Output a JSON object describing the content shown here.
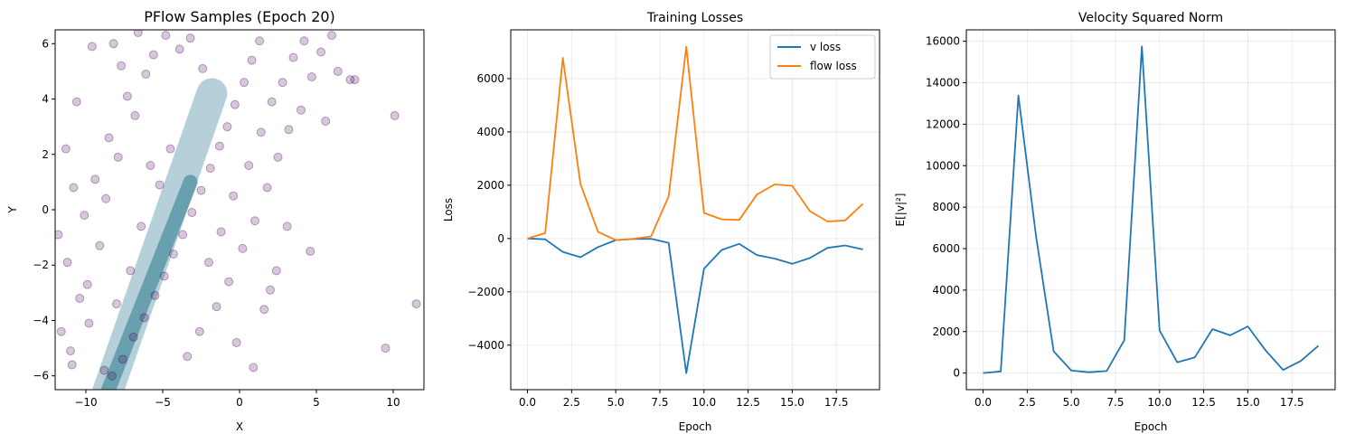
{
  "chart_data": [
    {
      "type": "scatter",
      "title": "PFlow Samples (Epoch 20)",
      "xlabel": "X",
      "ylabel": "Y",
      "xlim": [
        -12,
        12
      ],
      "ylim": [
        -6.5,
        6.5
      ],
      "xticks": [
        -10,
        -5,
        0,
        5,
        10
      ],
      "yticks": [
        -6,
        -4,
        -2,
        0,
        2,
        4,
        6
      ],
      "grid": false,
      "point_color": "#440154",
      "density_color": "#2a788e",
      "points": [
        [
          -8.3,
          -6.0
        ],
        [
          -7.6,
          -5.4
        ],
        [
          -6.9,
          -4.6
        ],
        [
          -6.2,
          -3.9
        ],
        [
          -5.5,
          -3.1
        ],
        [
          -4.9,
          -2.4
        ],
        [
          -4.3,
          -1.6
        ],
        [
          -3.7,
          -0.9
        ],
        [
          -3.1,
          -0.1
        ],
        [
          -2.5,
          0.7
        ],
        [
          -1.9,
          1.5
        ],
        [
          -1.3,
          2.3
        ],
        [
          -0.8,
          3.0
        ],
        [
          -0.3,
          3.8
        ],
        [
          0.3,
          4.6
        ],
        [
          0.8,
          5.4
        ],
        [
          1.3,
          6.1
        ],
        [
          -10.9,
          -5.6
        ],
        [
          -9.8,
          -4.1
        ],
        [
          -10.4,
          -3.2
        ],
        [
          -11.2,
          -1.9
        ],
        [
          -9.1,
          -1.3
        ],
        [
          -10.1,
          -0.2
        ],
        [
          -8.7,
          0.4
        ],
        [
          -9.4,
          1.1
        ],
        [
          -7.9,
          1.9
        ],
        [
          -8.5,
          2.6
        ],
        [
          -6.8,
          3.4
        ],
        [
          -7.3,
          4.1
        ],
        [
          -6.1,
          4.9
        ],
        [
          -5.6,
          5.6
        ],
        [
          -4.8,
          6.3
        ],
        [
          -3.9,
          5.8
        ],
        [
          -3.2,
          6.2
        ],
        [
          -2.4,
          5.1
        ],
        [
          -4.5,
          2.2
        ],
        [
          -5.2,
          0.9
        ],
        [
          -6.4,
          -0.6
        ],
        [
          -7.1,
          -2.2
        ],
        [
          -8.0,
          -3.4
        ],
        [
          -5.8,
          1.6
        ],
        [
          -2.0,
          -1.9
        ],
        [
          -1.2,
          -0.8
        ],
        [
          -0.4,
          0.5
        ],
        [
          0.6,
          1.6
        ],
        [
          1.4,
          2.8
        ],
        [
          2.1,
          3.9
        ],
        [
          2.8,
          4.6
        ],
        [
          3.5,
          5.5
        ],
        [
          4.2,
          6.1
        ],
        [
          -1.5,
          -3.5
        ],
        [
          -2.6,
          -4.4
        ],
        [
          -3.4,
          -5.3
        ],
        [
          -0.7,
          -2.6
        ],
        [
          0.2,
          -1.4
        ],
        [
          1.0,
          -0.4
        ],
        [
          1.8,
          0.8
        ],
        [
          2.5,
          1.9
        ],
        [
          3.2,
          2.9
        ],
        [
          4.0,
          3.6
        ],
        [
          4.7,
          4.8
        ],
        [
          5.3,
          5.7
        ],
        [
          6.0,
          6.3
        ],
        [
          0.9,
          -5.7
        ],
        [
          -0.2,
          -4.8
        ],
        [
          1.6,
          -3.6
        ],
        [
          2.4,
          -2.2
        ],
        [
          3.1,
          -0.6
        ],
        [
          2.0,
          -2.9
        ],
        [
          5.6,
          3.2
        ],
        [
          6.4,
          5.0
        ],
        [
          7.2,
          4.7
        ],
        [
          7.5,
          4.7
        ],
        [
          4.6,
          -1.5
        ],
        [
          9.5,
          -5.0
        ],
        [
          10.1,
          3.4
        ],
        [
          11.5,
          -3.4
        ],
        [
          -11.6,
          -4.4
        ],
        [
          -11.8,
          -0.9
        ],
        [
          -10.6,
          3.9
        ],
        [
          -9.6,
          5.9
        ],
        [
          -8.2,
          6.0
        ],
        [
          -7.7,
          5.2
        ],
        [
          -6.6,
          6.4
        ],
        [
          -11.3,
          2.2
        ],
        [
          -10.8,
          0.8
        ],
        [
          -9.9,
          -2.7
        ],
        [
          -11.0,
          -5.1
        ],
        [
          -8.8,
          -5.8
        ]
      ]
    },
    {
      "type": "line",
      "title": "Training Losses",
      "xlabel": "Epoch",
      "ylabel": "Loss",
      "xlim": [
        -0.95,
        19.95
      ],
      "ylim": [
        -5670,
        7830
      ],
      "xticks": [
        "0.0",
        "2.5",
        "5.0",
        "7.5",
        "10.0",
        "12.5",
        "15.0",
        "17.5"
      ],
      "yticks": [
        -4000,
        -2000,
        0,
        2000,
        4000,
        6000
      ],
      "grid": true,
      "legend": "top-right",
      "x": [
        0,
        1,
        2,
        3,
        4,
        5,
        6,
        7,
        8,
        9,
        10,
        11,
        12,
        13,
        14,
        15,
        16,
        17,
        18,
        19
      ],
      "series": [
        {
          "name": "v loss",
          "color": "#1f77b4",
          "values": [
            0,
            -30,
            -500,
            -700,
            -320,
            -60,
            -20,
            -10,
            -160,
            -5050,
            -1130,
            -430,
            -200,
            -620,
            -750,
            -950,
            -730,
            -350,
            -260,
            -410
          ]
        },
        {
          "name": "flow loss",
          "color": "#ff7f0e",
          "values": [
            0,
            200,
            6780,
            2050,
            250,
            -60,
            -10,
            80,
            1580,
            7200,
            960,
            720,
            700,
            1650,
            2030,
            1980,
            1030,
            640,
            680,
            1300
          ]
        }
      ]
    },
    {
      "type": "line",
      "title": "Velocity Squared Norm",
      "xlabel": "Epoch",
      "ylabel": "E[|v|²]",
      "xlim": [
        -0.95,
        19.95
      ],
      "ylim": [
        -800,
        16550
      ],
      "xticks": [
        "0.0",
        "2.5",
        "5.0",
        "7.5",
        "10.0",
        "12.5",
        "15.0",
        "17.5"
      ],
      "yticks": [
        0,
        2000,
        4000,
        6000,
        8000,
        10000,
        12000,
        14000,
        16000
      ],
      "grid": true,
      "x": [
        0,
        1,
        2,
        3,
        4,
        5,
        6,
        7,
        8,
        9,
        10,
        11,
        12,
        13,
        14,
        15,
        16,
        17,
        18,
        19
      ],
      "series": [
        {
          "color": "#1f77b4",
          "values": [
            0,
            80,
            13380,
            6600,
            1050,
            120,
            40,
            100,
            1580,
            15750,
            2050,
            520,
            760,
            2120,
            1820,
            2250,
            1100,
            150,
            580,
            1320
          ]
        }
      ]
    }
  ]
}
